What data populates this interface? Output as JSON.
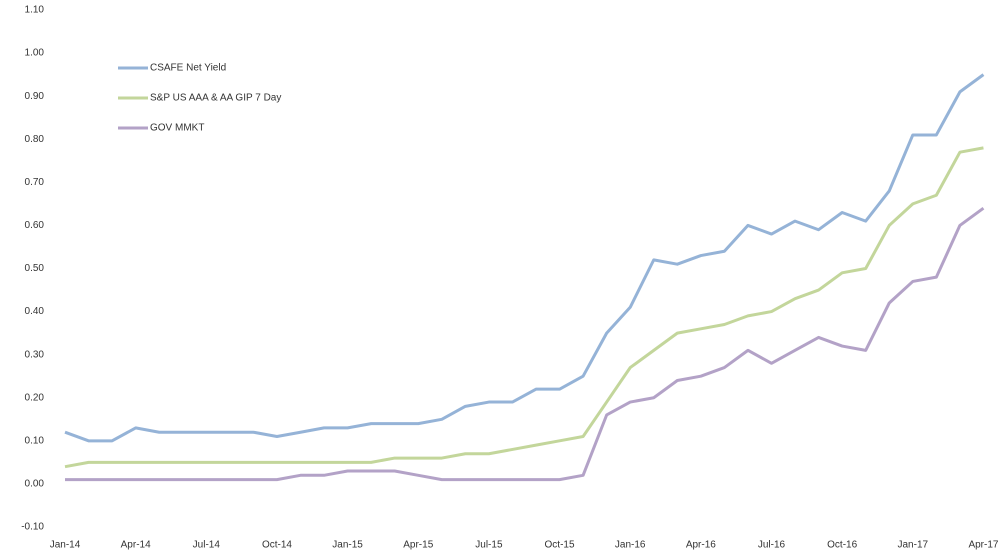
{
  "chart_data": {
    "type": "line",
    "categories": [
      "Jan-14",
      null,
      null,
      "Apr-14",
      null,
      null,
      "Jul-14",
      null,
      null,
      "Oct-14",
      null,
      null,
      "Jan-15",
      null,
      null,
      "Apr-15",
      null,
      null,
      "Jul-15",
      null,
      null,
      "Oct-15",
      null,
      null,
      "Jan-16",
      null,
      null,
      "Apr-16",
      null,
      null,
      "Jul-16",
      null,
      null,
      "Oct-16",
      null,
      null,
      "Jan-17",
      null,
      null,
      "Apr-17"
    ],
    "series": [
      {
        "name": "CSAFE Net Yield",
        "color": "#95b3d7",
        "values": [
          0.12,
          0.1,
          0.1,
          0.13,
          0.12,
          0.12,
          0.12,
          0.12,
          0.12,
          0.11,
          0.12,
          0.13,
          0.13,
          0.14,
          0.14,
          0.14,
          0.15,
          0.18,
          0.19,
          0.19,
          0.22,
          0.22,
          0.25,
          0.35,
          0.41,
          0.52,
          0.51,
          0.53,
          0.54,
          0.6,
          0.58,
          0.61,
          0.59,
          0.63,
          0.61,
          0.68,
          0.81,
          0.81,
          0.91,
          0.95
        ]
      },
      {
        "name": "S&P US AAA & AA GIP 7 Day",
        "color": "#c3d69b",
        "values": [
          0.04,
          0.05,
          0.05,
          0.05,
          0.05,
          0.05,
          0.05,
          0.05,
          0.05,
          0.05,
          0.05,
          0.05,
          0.05,
          0.05,
          0.06,
          0.06,
          0.06,
          0.07,
          0.07,
          0.08,
          0.09,
          0.1,
          0.11,
          0.19,
          0.27,
          0.31,
          0.35,
          0.36,
          0.37,
          0.39,
          0.4,
          0.43,
          0.45,
          0.49,
          0.5,
          0.6,
          0.65,
          0.67,
          0.77,
          0.78
        ]
      },
      {
        "name": "GOV MMKT",
        "color": "#b3a2c7",
        "values": [
          0.01,
          0.01,
          0.01,
          0.01,
          0.01,
          0.01,
          0.01,
          0.01,
          0.01,
          0.01,
          0.02,
          0.02,
          0.03,
          0.03,
          0.03,
          0.02,
          0.01,
          0.01,
          0.01,
          0.01,
          0.01,
          0.01,
          0.02,
          0.16,
          0.19,
          0.2,
          0.24,
          0.25,
          0.27,
          0.31,
          0.28,
          0.31,
          0.34,
          0.32,
          0.31,
          0.42,
          0.47,
          0.48,
          0.6,
          0.64
        ]
      }
    ],
    "ylim": [
      -0.1,
      1.1
    ],
    "yticks": [
      {
        "value": -0.1,
        "label": "-0.10"
      },
      {
        "value": 0,
        "label": "0.00"
      },
      {
        "value": 0.1,
        "label": "0.10"
      },
      {
        "value": 0.2,
        "label": "0.20"
      },
      {
        "value": 0.3,
        "label": "0.30"
      },
      {
        "value": 0.4,
        "label": "0.40"
      },
      {
        "value": 0.5,
        "label": "0.50"
      },
      {
        "value": 0.6,
        "label": "0.60"
      },
      {
        "value": 0.7,
        "label": "0.70"
      },
      {
        "value": 0.8,
        "label": "0.80"
      },
      {
        "value": 0.9,
        "label": "0.90"
      },
      {
        "value": 1.0,
        "label": "1.00"
      },
      {
        "value": 1.1,
        "label": "1.10"
      }
    ],
    "grid": false
  }
}
